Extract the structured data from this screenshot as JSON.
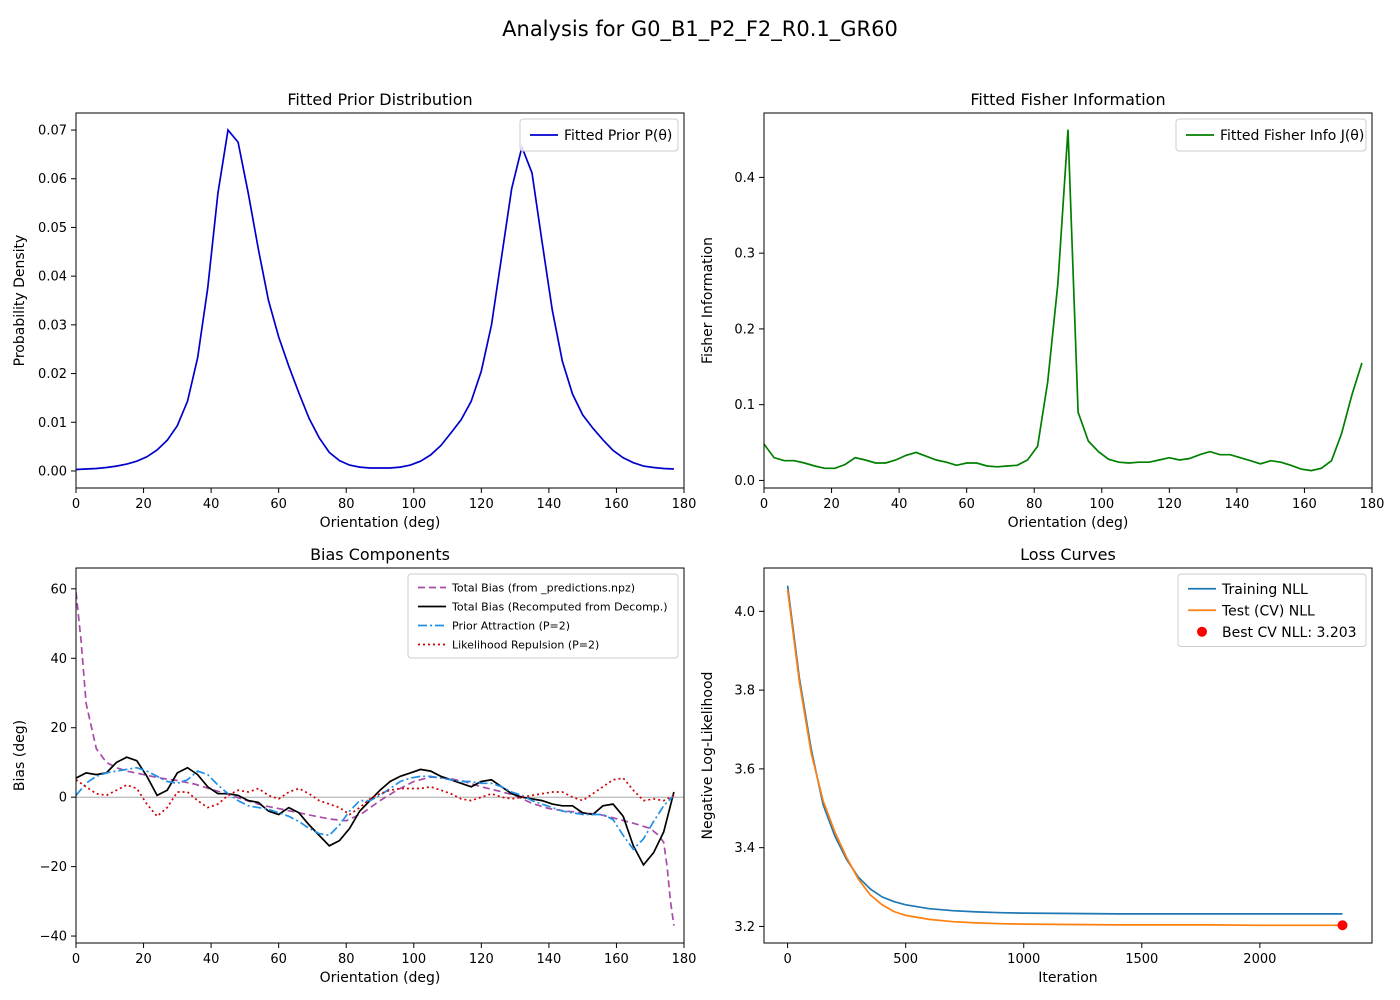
{
  "figure_title": "Analysis for G0_B1_P2_F2_R0.1_GR60",
  "chart_data": [
    {
      "type": "line",
      "title": "Fitted Prior Distribution",
      "xlabel": "Orientation (deg)",
      "ylabel": "Probability Density",
      "xlim": [
        0,
        180
      ],
      "ylim": [
        -0.0035,
        0.0735
      ],
      "xticks": [
        0,
        20,
        40,
        60,
        80,
        100,
        120,
        140,
        160,
        180
      ],
      "yticks": [
        0.0,
        0.01,
        0.02,
        0.03,
        0.04,
        0.05,
        0.06,
        0.07
      ],
      "yticklabels": [
        "0.00",
        "0.01",
        "0.02",
        "0.03",
        "0.04",
        "0.05",
        "0.06",
        "0.07"
      ],
      "grid": false,
      "legend_loc": "upper right",
      "series": [
        {
          "name": "Fitted Prior P(θ)",
          "color": "#0000cc",
          "dash": "",
          "x": [
            0,
            3,
            6,
            9,
            12,
            15,
            18,
            21,
            24,
            27,
            30,
            33,
            36,
            39,
            42,
            45,
            48,
            51,
            54,
            57,
            60,
            63,
            66,
            69,
            72,
            75,
            78,
            81,
            84,
            87,
            90,
            93,
            96,
            99,
            102,
            105,
            108,
            111,
            114,
            117,
            120,
            123,
            126,
            129,
            132,
            135,
            138,
            141,
            144,
            147,
            150,
            153,
            156,
            159,
            162,
            165,
            168,
            171,
            174,
            177
          ],
          "y": [
            0.0003,
            0.0004,
            0.0005,
            0.0007,
            0.001,
            0.0014,
            0.002,
            0.0029,
            0.0043,
            0.0063,
            0.0093,
            0.0143,
            0.0232,
            0.0375,
            0.057,
            0.07,
            0.0675,
            0.057,
            0.0455,
            0.035,
            0.0275,
            0.0215,
            0.016,
            0.0108,
            0.0068,
            0.0038,
            0.0021,
            0.0012,
            0.0008,
            0.0006,
            0.0006,
            0.0006,
            0.0008,
            0.0012,
            0.002,
            0.0033,
            0.0052,
            0.0078,
            0.0105,
            0.0143,
            0.0205,
            0.03,
            0.044,
            0.058,
            0.0665,
            0.0612,
            0.047,
            0.033,
            0.0225,
            0.0158,
            0.0115,
            0.0088,
            0.0064,
            0.0042,
            0.0027,
            0.0017,
            0.001,
            0.0007,
            0.0005,
            0.0004
          ]
        }
      ]
    },
    {
      "type": "line",
      "title": "Fitted Fisher Information",
      "xlabel": "Orientation (deg)",
      "ylabel": "Fisher Information",
      "xlim": [
        0,
        180
      ],
      "ylim": [
        -0.01,
        0.485
      ],
      "xticks": [
        0,
        20,
        40,
        60,
        80,
        100,
        120,
        140,
        160,
        180
      ],
      "yticks": [
        0.0,
        0.1,
        0.2,
        0.3,
        0.4
      ],
      "yticklabels": [
        "0.0",
        "0.1",
        "0.2",
        "0.3",
        "0.4"
      ],
      "grid": false,
      "legend_loc": "upper right",
      "series": [
        {
          "name": "Fitted Fisher Info J(θ)",
          "color": "#008000",
          "dash": "",
          "x": [
            0,
            3,
            6,
            9,
            12,
            15,
            18,
            21,
            24,
            27,
            30,
            33,
            36,
            39,
            42,
            45,
            48,
            51,
            54,
            57,
            60,
            63,
            66,
            69,
            72,
            75,
            78,
            81,
            84,
            87,
            90,
            93,
            96,
            99,
            102,
            105,
            108,
            111,
            114,
            117,
            120,
            123,
            126,
            129,
            132,
            135,
            138,
            141,
            144,
            147,
            150,
            153,
            156,
            159,
            162,
            165,
            168,
            171,
            174,
            177
          ],
          "y": [
            0.048,
            0.03,
            0.026,
            0.026,
            0.023,
            0.019,
            0.016,
            0.016,
            0.021,
            0.03,
            0.027,
            0.023,
            0.023,
            0.027,
            0.033,
            0.037,
            0.032,
            0.027,
            0.024,
            0.02,
            0.023,
            0.023,
            0.019,
            0.018,
            0.019,
            0.02,
            0.027,
            0.045,
            0.13,
            0.26,
            0.463,
            0.09,
            0.052,
            0.038,
            0.028,
            0.024,
            0.023,
            0.024,
            0.024,
            0.027,
            0.03,
            0.027,
            0.029,
            0.034,
            0.038,
            0.034,
            0.034,
            0.03,
            0.026,
            0.022,
            0.026,
            0.024,
            0.02,
            0.015,
            0.013,
            0.016,
            0.026,
            0.062,
            0.112,
            0.155
          ]
        }
      ]
    },
    {
      "type": "line",
      "title": "Bias Components",
      "xlabel": "Orientation (deg)",
      "ylabel": "Bias (deg)",
      "xlim": [
        0,
        180
      ],
      "ylim": [
        -42,
        66
      ],
      "xticks": [
        0,
        20,
        40,
        60,
        80,
        100,
        120,
        140,
        160,
        180
      ],
      "yticks": [
        -40,
        -20,
        0,
        20,
        40,
        60
      ],
      "yticklabels": [
        "−40",
        "−20",
        "0",
        "20",
        "40",
        "60"
      ],
      "zero_line": true,
      "grid": false,
      "legend_loc": "upper right",
      "series": [
        {
          "name": "Total Bias (from _predictions.npz)",
          "color": "#a84ca8",
          "dash": "7,4",
          "x": [
            0,
            1.5,
            3,
            6,
            9,
            12,
            15,
            20,
            25,
            30,
            35,
            40,
            45,
            50,
            55,
            60,
            65,
            70,
            75,
            80,
            85,
            90,
            95,
            100,
            105,
            110,
            115,
            120,
            125,
            130,
            135,
            140,
            145,
            150,
            155,
            160,
            165,
            170,
            172.5,
            174,
            175,
            176,
            177
          ],
          "y": [
            59,
            45,
            27,
            14,
            10,
            8.5,
            7.5,
            6.5,
            5.5,
            4.8,
            3.8,
            2.3,
            0.8,
            -0.8,
            -2.3,
            -3.3,
            -4.3,
            -5.3,
            -6.3,
            -6.8,
            -4.5,
            -1,
            2,
            4.5,
            5.8,
            5.5,
            4.5,
            3,
            1.8,
            0.5,
            -1.8,
            -3.3,
            -4,
            -4.5,
            -5,
            -6.2,
            -7.5,
            -9,
            -11,
            -13,
            -20,
            -30,
            -37
          ]
        },
        {
          "name": "Total Bias (Recomputed from Decomp.)",
          "color": "#000000",
          "dash": "",
          "x": [
            0,
            3,
            6,
            9,
            12,
            15,
            18,
            21,
            24,
            27,
            30,
            33,
            36,
            39,
            42,
            45,
            48,
            51,
            54,
            57,
            60,
            63,
            66,
            69,
            72,
            75,
            78,
            81,
            84,
            87,
            90,
            93,
            96,
            99,
            102,
            105,
            108,
            111,
            114,
            117,
            120,
            123,
            126,
            129,
            132,
            135,
            138,
            141,
            144,
            147,
            150,
            153,
            156,
            159,
            162,
            165,
            168,
            171,
            174,
            177
          ],
          "y": [
            5.5,
            7,
            6.5,
            7,
            10,
            11.5,
            10.5,
            6,
            0.5,
            2,
            7,
            8.5,
            6.5,
            3,
            1,
            1,
            0.5,
            -1,
            -1.5,
            -4,
            -5,
            -3,
            -4.5,
            -8,
            -11,
            -14,
            -12.5,
            -9,
            -4,
            -1,
            2,
            4.5,
            6,
            7,
            8,
            7.5,
            6,
            5,
            4,
            3,
            4.5,
            5,
            3,
            1,
            0,
            -0.5,
            -1,
            -2,
            -2.5,
            -2.5,
            -4.5,
            -5,
            -2.5,
            -2,
            -5.5,
            -14,
            -19.5,
            -16,
            -10,
            1.5
          ]
        },
        {
          "name": "Prior Attraction (P=2)",
          "color": "#1f90e6",
          "dash": "9,3,2,3",
          "x": [
            0,
            3,
            6,
            9,
            12,
            15,
            18,
            21,
            24,
            27,
            30,
            33,
            36,
            39,
            42,
            45,
            48,
            51,
            54,
            57,
            60,
            63,
            66,
            69,
            72,
            75,
            78,
            81,
            84,
            87,
            90,
            93,
            96,
            99,
            102,
            105,
            108,
            111,
            114,
            117,
            120,
            123,
            126,
            129,
            132,
            135,
            138,
            141,
            144,
            147,
            150,
            153,
            156,
            159,
            162,
            165,
            168,
            171,
            174,
            177
          ],
          "y": [
            0.5,
            4,
            6,
            7,
            7.5,
            8,
            8.5,
            7.5,
            6,
            4.5,
            4,
            5,
            7.5,
            6.5,
            3.5,
            1,
            -1,
            -2.5,
            -3,
            -3.5,
            -4.5,
            -5.5,
            -7,
            -9,
            -10.5,
            -11,
            -8,
            -4,
            -1,
            -1,
            0.5,
            2.5,
            4.5,
            5.5,
            6,
            6,
            5.5,
            5,
            4.5,
            4.5,
            4,
            4,
            3,
            1.5,
            0.5,
            -1,
            -2,
            -3,
            -4,
            -4.5,
            -5,
            -5,
            -5,
            -6.5,
            -11,
            -15,
            -12,
            -7,
            -2.5,
            0.5
          ]
        },
        {
          "name": "Likelihood Repulsion (P=2)",
          "color": "#d00000",
          "dash": "2,3",
          "x": [
            0,
            3,
            6,
            9,
            12,
            15,
            18,
            21,
            24,
            27,
            30,
            33,
            36,
            39,
            42,
            45,
            48,
            51,
            54,
            57,
            60,
            63,
            66,
            69,
            72,
            75,
            78,
            81,
            84,
            87,
            90,
            93,
            96,
            99,
            102,
            105,
            108,
            111,
            114,
            117,
            120,
            123,
            126,
            129,
            132,
            135,
            138,
            141,
            144,
            147,
            150,
            153,
            156,
            159,
            162,
            165,
            168,
            171,
            174,
            177
          ],
          "y": [
            5,
            3,
            1,
            0.5,
            2,
            3.5,
            2.5,
            -2,
            -5.5,
            -3,
            1.5,
            1.5,
            -1,
            -3,
            -2,
            0.5,
            2,
            1.5,
            2.5,
            0.5,
            -0.5,
            1.5,
            2.5,
            1,
            -1,
            -2,
            -3,
            -5,
            -3,
            -0.5,
            1,
            2,
            2.5,
            2.5,
            2.5,
            3,
            2,
            1,
            -0.5,
            -1,
            0,
            1,
            0,
            -0.5,
            0,
            0.5,
            1,
            1.5,
            1.5,
            0,
            -1,
            1,
            3,
            5,
            5.5,
            2,
            -1,
            -0.5,
            -1,
            0.5
          ]
        }
      ]
    },
    {
      "type": "line",
      "title": "Loss Curves",
      "xlabel": "Iteration",
      "ylabel": "Negative Log-Likelihood",
      "xlim": [
        -100,
        2475
      ],
      "ylim": [
        3.158,
        4.11
      ],
      "xticks": [
        0,
        500,
        1000,
        1500,
        2000
      ],
      "yticks": [
        3.2,
        3.4,
        3.6,
        3.8,
        4.0
      ],
      "yticklabels": [
        "3.2",
        "3.4",
        "3.6",
        "3.8",
        "4.0"
      ],
      "grid": false,
      "legend_loc": "upper right",
      "series": [
        {
          "name": "Training NLL",
          "color": "#1f77b4",
          "dash": "",
          "x": [
            0,
            50,
            100,
            150,
            200,
            250,
            300,
            350,
            400,
            450,
            500,
            600,
            700,
            800,
            900,
            1000,
            1200,
            1400,
            1600,
            1800,
            2000,
            2200,
            2350
          ],
          "y": [
            4.065,
            3.83,
            3.65,
            3.51,
            3.43,
            3.37,
            3.325,
            3.295,
            3.275,
            3.263,
            3.255,
            3.245,
            3.24,
            3.237,
            3.235,
            3.234,
            3.233,
            3.232,
            3.232,
            3.232,
            3.232,
            3.232,
            3.232
          ]
        },
        {
          "name": "Test (CV) NLL",
          "color": "#ff7f0e",
          "dash": "",
          "x": [
            0,
            50,
            100,
            150,
            200,
            250,
            300,
            350,
            400,
            450,
            500,
            600,
            700,
            800,
            900,
            1000,
            1200,
            1400,
            1600,
            1800,
            2000,
            2200,
            2350
          ],
          "y": [
            4.055,
            3.82,
            3.64,
            3.52,
            3.44,
            3.375,
            3.32,
            3.28,
            3.255,
            3.238,
            3.228,
            3.218,
            3.212,
            3.209,
            3.207,
            3.206,
            3.205,
            3.204,
            3.204,
            3.204,
            3.203,
            3.203,
            3.203
          ]
        }
      ],
      "marker": {
        "name": "Best CV NLL: 3.203",
        "x": 2350,
        "y": 3.203,
        "color": "#ff0000"
      }
    }
  ]
}
